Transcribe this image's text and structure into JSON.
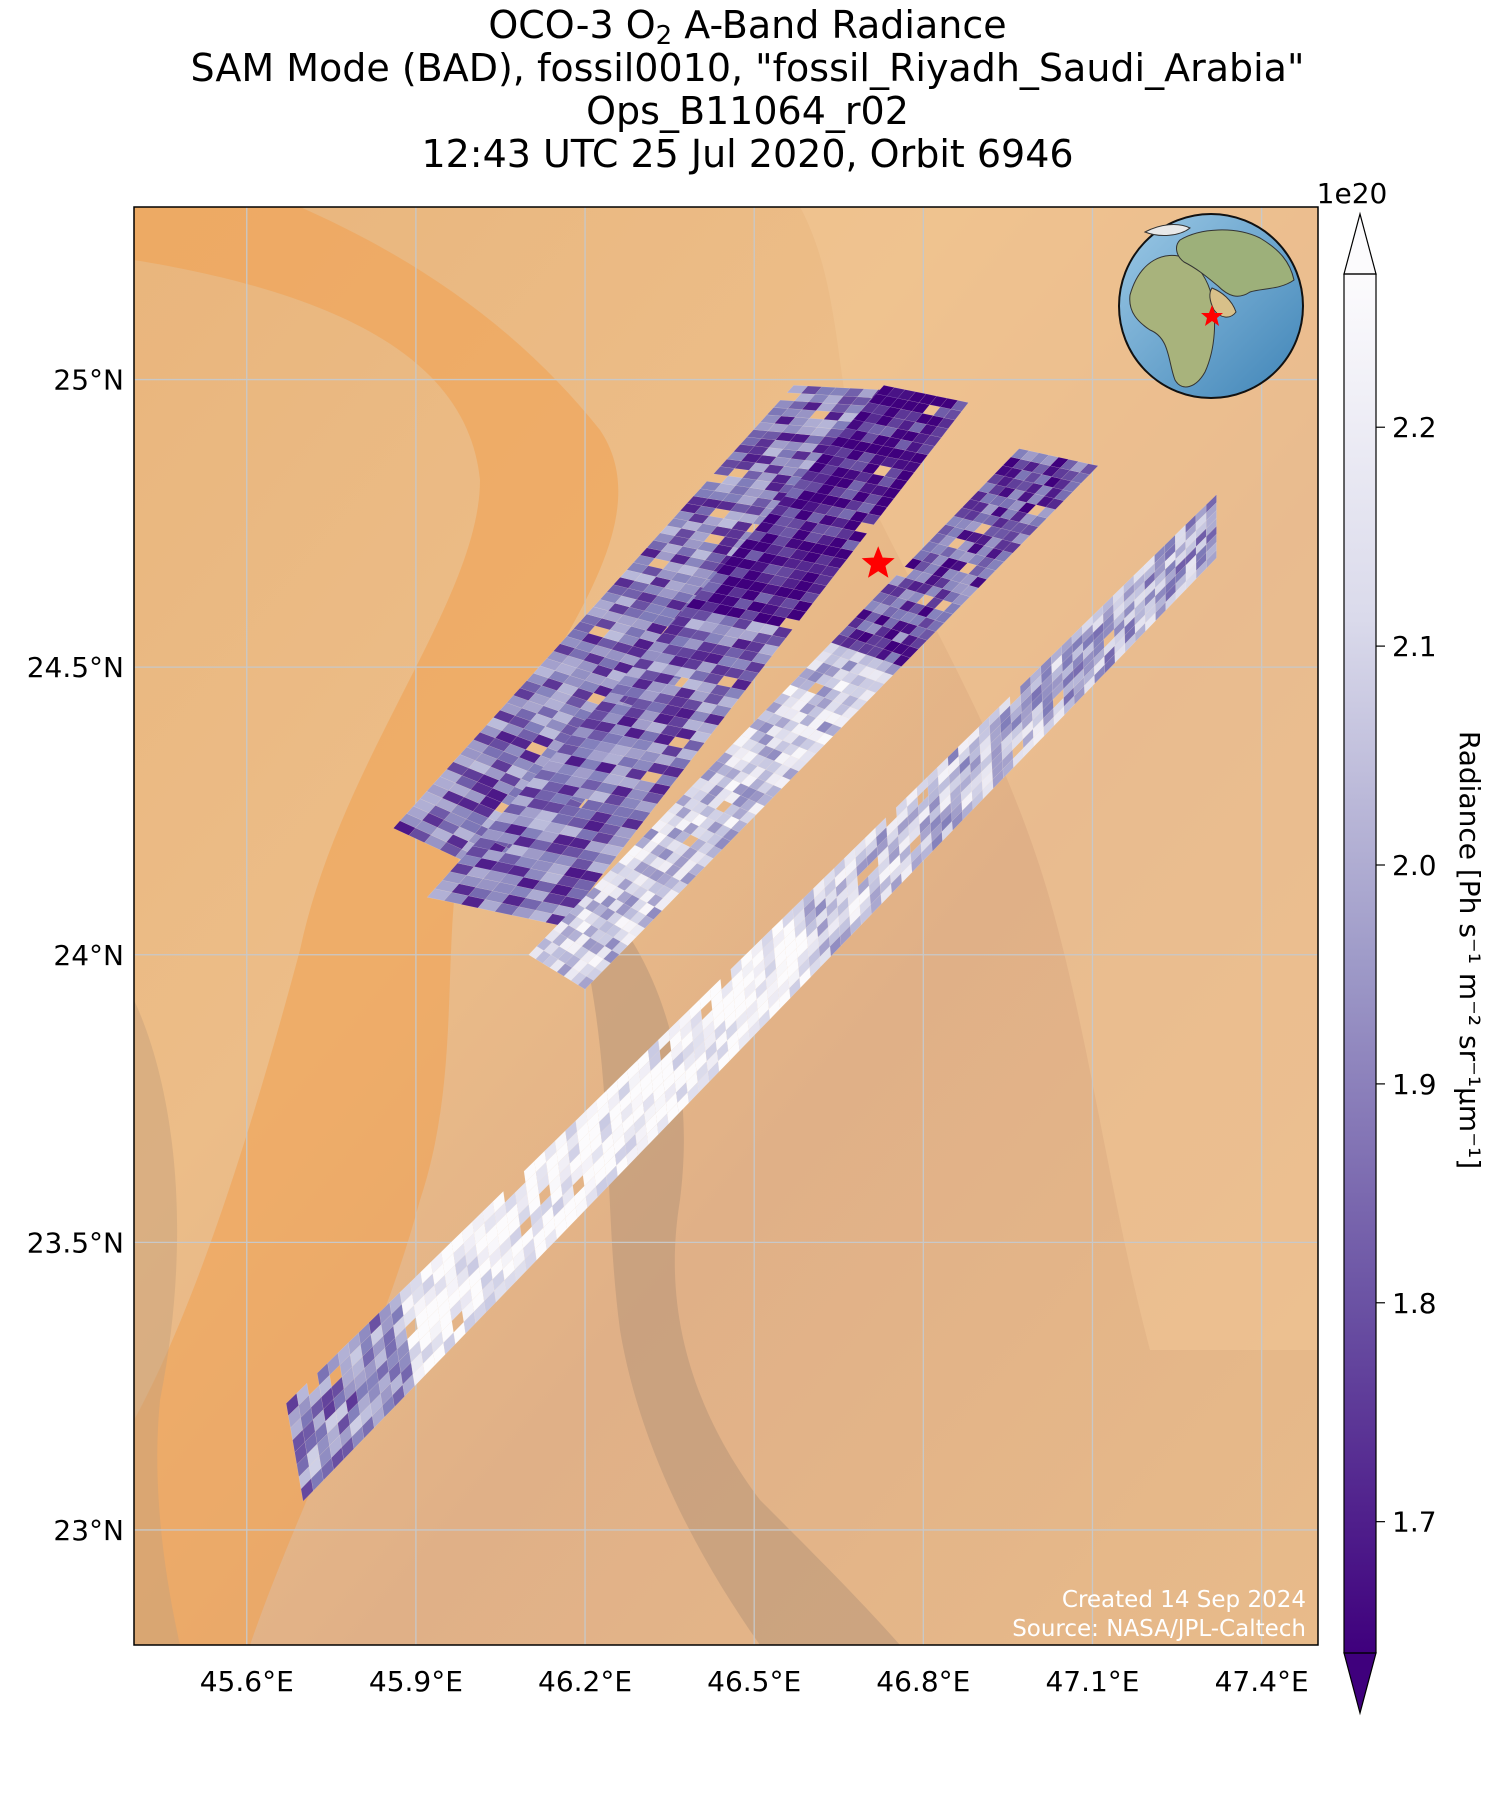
{
  "title": {
    "line1_prefix": "OCO-3 O",
    "line1_sub": "2",
    "line1_suffix": " A-Band Radiance",
    "line2": "SAM Mode (BAD), fossil0010, \"fossil_Riyadh_Saudi_Arabia\"",
    "line3": "Ops_B11064_r02",
    "line4": "12:43 UTC 25 Jul 2020, Orbit 6946"
  },
  "map": {
    "lon_range": [
      45.4,
      47.5
    ],
    "lat_range": [
      22.8,
      25.3
    ],
    "lon_ticks": [
      {
        "value": 45.6,
        "label": "45.6°E"
      },
      {
        "value": 45.9,
        "label": "45.9°E"
      },
      {
        "value": 46.2,
        "label": "46.2°E"
      },
      {
        "value": 46.5,
        "label": "46.5°E"
      },
      {
        "value": 46.8,
        "label": "46.8°E"
      },
      {
        "value": 47.1,
        "label": "47.1°E"
      },
      {
        "value": 47.4,
        "label": "47.4°E"
      }
    ],
    "lat_ticks": [
      {
        "value": 25.0,
        "label": "25°N"
      },
      {
        "value": 24.5,
        "label": "24.5°N"
      },
      {
        "value": 24.0,
        "label": "24°N"
      },
      {
        "value": 23.5,
        "label": "23.5°N"
      },
      {
        "value": 23.0,
        "label": "23°N"
      }
    ],
    "grid": true,
    "background": "desert satellite imagery",
    "target": {
      "lon": 46.72,
      "lat": 24.68,
      "marker": "red-star-icon",
      "color": "#ff0000"
    },
    "inset": "globe-locator-icon"
  },
  "chart_data": {
    "type": "heatmap",
    "colormap": "Purples_r",
    "colors": {
      "low": "#3f007d",
      "high": "#fcfbfd"
    },
    "swaths": [
      {
        "name": "",
        "lon_lat_corners": [
          [
            45.86,
            24.22
          ],
          [
            46.08,
            24.12
          ],
          [
            46.77,
            24.98
          ],
          [
            46.57,
            24.99
          ]
        ]
      },
      {
        "name": "",
        "lon_lat_corners": [
          [
            45.92,
            24.1
          ],
          [
            46.16,
            24.05
          ],
          [
            46.88,
            24.96
          ],
          [
            46.73,
            24.99
          ]
        ]
      },
      {
        "name": "",
        "lon_lat_corners": [
          [
            46.1,
            24.0
          ],
          [
            46.2,
            23.94
          ],
          [
            47.11,
            24.85
          ],
          [
            46.97,
            24.88
          ]
        ]
      },
      {
        "name": "",
        "lon_lat_corners": [
          [
            45.67,
            23.22
          ],
          [
            45.7,
            23.05
          ],
          [
            47.32,
            24.69
          ],
          [
            47.32,
            24.8
          ]
        ]
      }
    ]
  },
  "colorbar": {
    "label": "Radiance [Ph s⁻¹ m⁻² sr⁻¹μm⁻¹]",
    "exponent": "1e20",
    "vmin": 1.64,
    "vmax": 2.27,
    "extend": "both",
    "ticks": [
      {
        "value": 1.7,
        "label": "1.7"
      },
      {
        "value": 1.8,
        "label": "1.8"
      },
      {
        "value": 1.9,
        "label": "1.9"
      },
      {
        "value": 2.0,
        "label": "2.0"
      },
      {
        "value": 2.1,
        "label": "2.1"
      },
      {
        "value": 2.2,
        "label": "2.2"
      }
    ]
  },
  "footer": {
    "created": "Created 14 Sep 2024",
    "source": "Source: NASA/JPL-Caltech"
  }
}
